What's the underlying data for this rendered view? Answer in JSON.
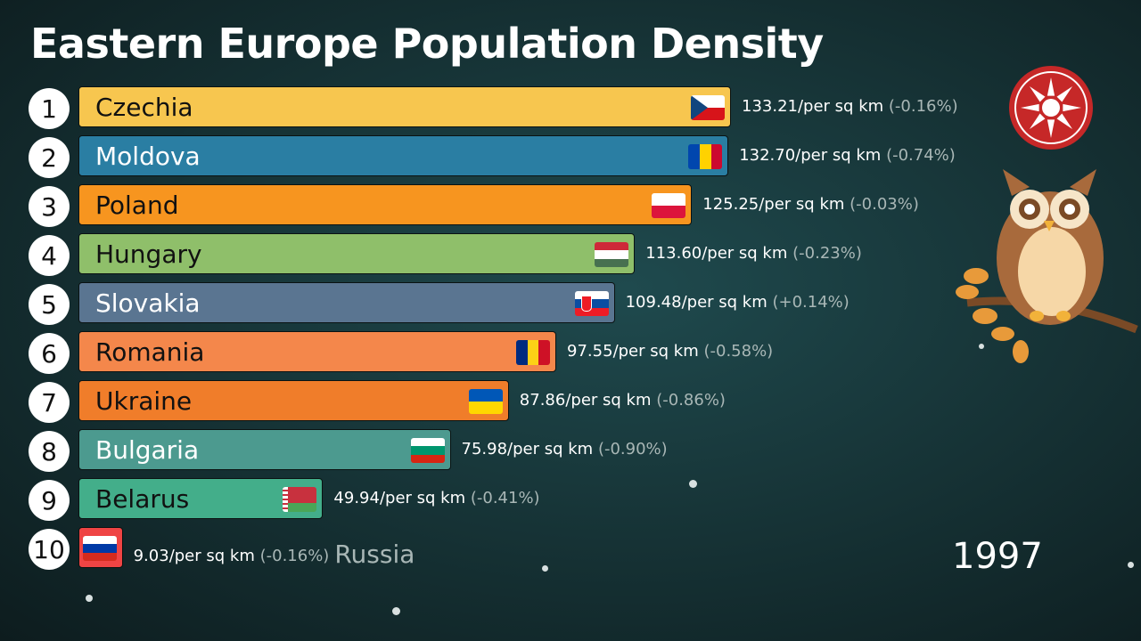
{
  "title": "Eastern Europe Population Density",
  "year": "1997",
  "unit": "/per sq km",
  "chart_data": {
    "type": "bar",
    "orientation": "horizontal",
    "title": "Eastern Europe Population Density",
    "categories": [
      "Czechia",
      "Moldova",
      "Poland",
      "Hungary",
      "Slovakia",
      "Romania",
      "Ukraine",
      "Bulgaria",
      "Belarus",
      "Russia"
    ],
    "values": [
      133.21,
      132.7,
      125.25,
      113.6,
      109.48,
      97.55,
      87.86,
      75.98,
      49.94,
      9.03
    ],
    "changes": [
      "(-0.16%)",
      "(-0.74%)",
      "(-0.03%)",
      "(-0.23%)",
      "(+0.14%)",
      "(-0.58%)",
      "(-0.86%)",
      "(-0.90%)",
      "(-0.41%)",
      "(-0.16%)"
    ],
    "value_labels": [
      "133.21",
      "132.70",
      "125.25",
      "113.60",
      "109.48",
      "97.55",
      "87.86",
      "75.98",
      "49.94",
      "9.03"
    ],
    "ranks": [
      "1",
      "2",
      "3",
      "4",
      "5",
      "6",
      "7",
      "8",
      "9",
      "10"
    ],
    "colors": [
      "#f7c64f",
      "#2a7ea3",
      "#f7951f",
      "#8fbf6a",
      "#5a7591",
      "#f4874b",
      "#f07d2a",
      "#4c9a8f",
      "#43ae8a",
      "#ef4444"
    ],
    "name_colors": [
      "#111",
      "#fff",
      "#111",
      "#111",
      "#fff",
      "#111",
      "#111",
      "#fff",
      "#111",
      "#a9b7b6"
    ],
    "flags": [
      "czechia",
      "moldova",
      "poland",
      "hungary",
      "slovakia",
      "romania",
      "ukraine",
      "bulgaria",
      "belarus",
      "russia"
    ],
    "xlim": [
      0,
      133.21
    ]
  }
}
